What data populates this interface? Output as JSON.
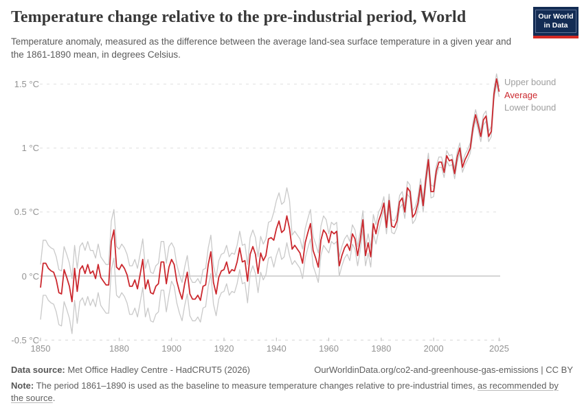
{
  "header": {
    "title": "Temperature change relative to the pre-industrial period, World",
    "subtitle": "Temperature anomaly, measured as the difference between the average land-sea surface temperature in a given year and the 1861-1890 mean, in degrees Celsius.",
    "logo": {
      "line1": "Our World",
      "line2": "in Data",
      "bg_color": "#132c54",
      "strip_color": "#d42a24"
    }
  },
  "footer": {
    "datasource_label": "Data source:",
    "datasource_value": "Met Office Hadley Centre - HadCRUT5 (2026)",
    "attribution": "OurWorldinData.org/co2-and-greenhouse-gas-emissions | CC BY",
    "note_label": "Note:",
    "note_text": "The period 1861–1890 is used as the baseline to measure temperature changes relative to pre-industrial times, ",
    "note_link": "as recommended by the source",
    "note_suffix": "."
  },
  "chart_data": {
    "type": "line",
    "title": "Temperature change relative to the pre-industrial period, World",
    "y_unit": "°C",
    "x_start": 1850,
    "x_step": 1,
    "x_end": 2025,
    "xlim": [
      1849,
      2027
    ],
    "ylim": [
      -0.55,
      1.6
    ],
    "grid": "horizontal-dashed",
    "legend_position": "right",
    "yticks": [
      {
        "value": 1.5,
        "label": "1.5 °C"
      },
      {
        "value": 1.0,
        "label": "1 °C"
      },
      {
        "value": 0.5,
        "label": "0.5 °C"
      },
      {
        "value": 0.0,
        "label": "0 °C"
      },
      {
        "value": -0.5,
        "label": "-0.5 °C"
      }
    ],
    "xticks": [
      {
        "value": 1850,
        "label": "1850"
      },
      {
        "value": 1880,
        "label": "1880"
      },
      {
        "value": 1900,
        "label": "1900"
      },
      {
        "value": 1920,
        "label": "1920"
      },
      {
        "value": 1940,
        "label": "1940"
      },
      {
        "value": 1960,
        "label": "1960"
      },
      {
        "value": 1980,
        "label": "1980"
      },
      {
        "value": 2000,
        "label": "2000"
      },
      {
        "value": 2025,
        "label": "2025"
      }
    ],
    "series": [
      {
        "name": "Upper bound",
        "color": "#c9c9c9",
        "label_color": "#9e9e9e",
        "values": [
          0.09,
          0.28,
          0.28,
          0.24,
          0.22,
          0.21,
          0.15,
          0.05,
          0.04,
          0.23,
          0.17,
          0.1,
          -0.02,
          0.24,
          0.06,
          0.23,
          0.26,
          0.2,
          0.27,
          0.2,
          0.2,
          0.14,
          0.25,
          0.15,
          0.12,
          0.09,
          0.09,
          0.43,
          0.52,
          0.23,
          0.21,
          0.25,
          0.22,
          0.17,
          0.08,
          0.08,
          0.13,
          0.06,
          0.17,
          0.29,
          0.06,
          0.13,
          0.03,
          0.02,
          0.08,
          0.1,
          0.27,
          0.27,
          0.1,
          0.23,
          0.26,
          0.22,
          0.09,
          0.01,
          -0.05,
          0.07,
          0.16,
          -0.01,
          -0.05,
          -0.05,
          -0.02,
          -0.06,
          0.05,
          0.06,
          0.22,
          0.32,
          0.08,
          -0.01,
          0.12,
          0.17,
          0.18,
          0.24,
          0.15,
          0.18,
          0.17,
          0.24,
          0.35,
          0.24,
          0.25,
          0.09,
          0.3,
          0.36,
          0.3,
          0.15,
          0.31,
          0.25,
          0.29,
          0.42,
          0.43,
          0.5,
          0.59,
          0.65,
          0.56,
          0.58,
          0.69,
          0.59,
          0.32,
          0.35,
          0.32,
          0.29,
          0.21,
          0.37,
          0.45,
          0.52,
          0.31,
          0.25,
          0.18,
          0.39,
          0.47,
          0.44,
          0.33,
          0.42,
          0.4,
          0.42,
          0.15,
          0.23,
          0.29,
          0.32,
          0.27,
          0.4,
          0.36,
          0.23,
          0.35,
          0.51,
          0.23,
          0.33,
          0.22,
          0.48,
          0.4,
          0.5,
          0.54,
          0.62,
          0.43,
          0.64,
          0.44,
          0.43,
          0.48,
          0.63,
          0.66,
          0.55,
          0.74,
          0.71,
          0.51,
          0.54,
          0.62,
          0.76,
          0.6,
          0.8,
          0.96,
          0.71,
          0.7,
          0.86,
          0.93,
          0.93,
          0.85,
          0.98,
          0.94,
          0.95,
          0.84,
          0.97,
          1.04,
          0.89,
          0.95,
          0.99,
          1.04,
          1.2,
          1.3,
          1.22,
          1.13,
          1.26,
          1.29,
          1.13,
          1.17,
          1.46,
          1.58,
          1.48
        ]
      },
      {
        "name": "Average",
        "color": "#cb272d",
        "label_color": "#cb272d",
        "values": [
          -0.09,
          0.1,
          0.1,
          0.06,
          0.04,
          0.03,
          -0.03,
          -0.13,
          -0.14,
          0.05,
          -0.01,
          -0.08,
          -0.2,
          0.06,
          -0.12,
          0.05,
          0.08,
          0.02,
          0.09,
          0.02,
          0.04,
          -0.02,
          0.09,
          -0.01,
          -0.04,
          -0.07,
          -0.07,
          0.27,
          0.36,
          0.07,
          0.05,
          0.09,
          0.06,
          0.01,
          -0.08,
          -0.08,
          -0.03,
          -0.1,
          0.01,
          0.13,
          -0.1,
          -0.03,
          -0.13,
          -0.14,
          -0.08,
          -0.06,
          0.11,
          0.11,
          -0.06,
          0.07,
          0.13,
          0.09,
          -0.04,
          -0.12,
          -0.18,
          -0.06,
          0.03,
          -0.14,
          -0.18,
          -0.18,
          -0.15,
          -0.19,
          -0.08,
          -0.07,
          0.09,
          0.19,
          -0.05,
          -0.14,
          -0.01,
          0.04,
          0.05,
          0.11,
          0.02,
          0.05,
          0.04,
          0.11,
          0.22,
          0.11,
          0.12,
          -0.04,
          0.17,
          0.23,
          0.17,
          0.02,
          0.18,
          0.12,
          0.16,
          0.29,
          0.3,
          0.28,
          0.37,
          0.43,
          0.34,
          0.36,
          0.47,
          0.37,
          0.21,
          0.24,
          0.21,
          0.18,
          0.1,
          0.26,
          0.34,
          0.41,
          0.2,
          0.14,
          0.07,
          0.28,
          0.36,
          0.33,
          0.26,
          0.35,
          0.33,
          0.35,
          0.08,
          0.16,
          0.22,
          0.25,
          0.2,
          0.33,
          0.29,
          0.16,
          0.28,
          0.44,
          0.16,
          0.26,
          0.15,
          0.41,
          0.33,
          0.43,
          0.49,
          0.57,
          0.38,
          0.59,
          0.39,
          0.38,
          0.43,
          0.58,
          0.61,
          0.5,
          0.69,
          0.66,
          0.46,
          0.49,
          0.57,
          0.71,
          0.55,
          0.75,
          0.91,
          0.66,
          0.66,
          0.82,
          0.89,
          0.89,
          0.81,
          0.94,
          0.9,
          0.91,
          0.8,
          0.93,
          1.0,
          0.85,
          0.91,
          0.95,
          1.0,
          1.16,
          1.26,
          1.18,
          1.09,
          1.22,
          1.25,
          1.09,
          1.13,
          1.42,
          1.54,
          1.44
        ]
      },
      {
        "name": "Lower bound",
        "color": "#c9c9c9",
        "label_color": "#9e9e9e",
        "values": [
          -0.34,
          -0.15,
          -0.15,
          -0.19,
          -0.21,
          -0.22,
          -0.28,
          -0.38,
          -0.39,
          -0.2,
          -0.26,
          -0.33,
          -0.45,
          -0.19,
          -0.37,
          -0.2,
          -0.17,
          -0.23,
          -0.16,
          -0.23,
          -0.18,
          -0.24,
          -0.13,
          -0.23,
          -0.26,
          -0.29,
          -0.29,
          0.05,
          0.14,
          -0.15,
          -0.17,
          -0.13,
          -0.16,
          -0.21,
          -0.3,
          -0.3,
          -0.25,
          -0.32,
          -0.21,
          -0.09,
          -0.32,
          -0.25,
          -0.35,
          -0.36,
          -0.3,
          -0.28,
          -0.11,
          -0.11,
          -0.28,
          -0.15,
          -0.04,
          -0.08,
          -0.21,
          -0.29,
          -0.35,
          -0.23,
          -0.14,
          -0.31,
          -0.35,
          -0.35,
          -0.32,
          -0.36,
          -0.25,
          -0.24,
          -0.08,
          0.02,
          -0.22,
          -0.31,
          -0.18,
          -0.13,
          -0.12,
          -0.06,
          -0.15,
          -0.12,
          -0.13,
          -0.06,
          0.05,
          -0.06,
          -0.05,
          -0.21,
          0.02,
          0.08,
          0.02,
          -0.13,
          0.03,
          -0.03,
          0.01,
          0.14,
          0.15,
          0.07,
          0.16,
          0.22,
          0.13,
          0.15,
          0.26,
          0.16,
          0.09,
          0.12,
          0.09,
          0.06,
          -0.02,
          0.14,
          0.22,
          0.29,
          0.08,
          0.02,
          -0.05,
          0.16,
          0.24,
          0.21,
          0.18,
          0.27,
          0.25,
          0.27,
          0.0,
          0.08,
          0.14,
          0.17,
          0.12,
          0.25,
          0.21,
          0.08,
          0.2,
          0.36,
          0.08,
          0.18,
          0.07,
          0.33,
          0.25,
          0.35,
          0.44,
          0.52,
          0.33,
          0.54,
          0.34,
          0.33,
          0.38,
          0.53,
          0.56,
          0.45,
          0.64,
          0.61,
          0.41,
          0.44,
          0.52,
          0.66,
          0.5,
          0.7,
          0.86,
          0.61,
          0.62,
          0.78,
          0.85,
          0.85,
          0.77,
          0.9,
          0.86,
          0.87,
          0.76,
          0.89,
          0.96,
          0.81,
          0.87,
          0.91,
          0.96,
          1.12,
          1.22,
          1.14,
          1.05,
          1.18,
          1.21,
          1.05,
          1.09,
          1.38,
          1.5,
          1.4
        ]
      }
    ]
  }
}
